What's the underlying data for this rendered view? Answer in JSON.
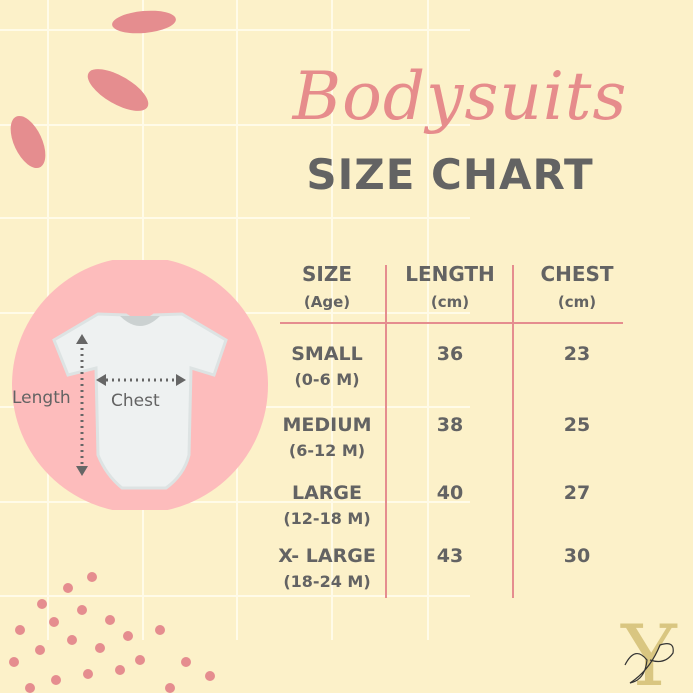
{
  "title": "Bodysuits",
  "subtitle": "SIZE CHART",
  "diagram": {
    "length_label": "Length",
    "chest_label": "Chest"
  },
  "table": {
    "headers": [
      {
        "label": "SIZE",
        "sub": "(Age)"
      },
      {
        "label": "LENGTH",
        "sub": "(cm)"
      },
      {
        "label": "CHEST",
        "sub": "(cm)"
      }
    ],
    "rows": [
      {
        "size": "SMALL",
        "age": "(0-6 M)",
        "length": "36",
        "chest": "23"
      },
      {
        "size": "MEDIUM",
        "age": "(6-12 M)",
        "length": "38",
        "chest": "25"
      },
      {
        "size": "LARGE",
        "age": "(12-18 M)",
        "length": "40",
        "chest": "27"
      },
      {
        "size": "X- LARGE",
        "age": "(18-24 M)",
        "length": "43",
        "chest": "30"
      }
    ]
  },
  "colors": {
    "background": "#fcf1c9",
    "accent": "#e68c8c",
    "text": "#636363",
    "circle": "#fdbcbc"
  }
}
